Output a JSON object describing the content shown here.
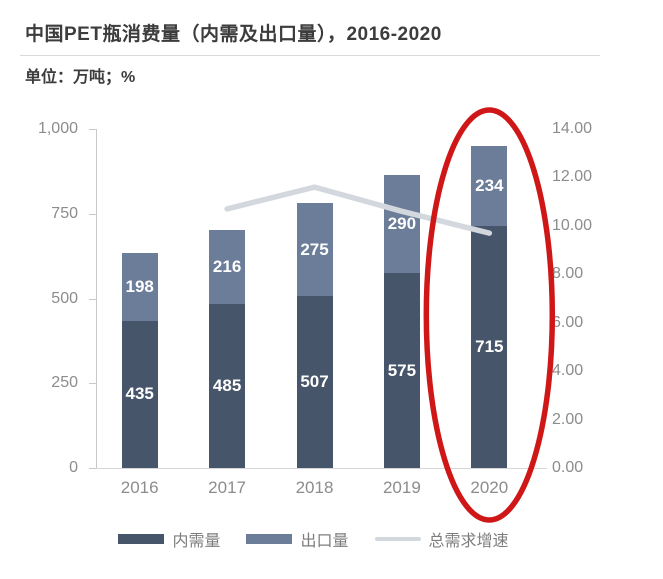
{
  "title": "中国PET瓶消费量（内需及出口量），2016-2020",
  "subtitle": "单位：万吨；%",
  "chart_data": {
    "type": "bar",
    "subtype": "stacked-bars-with-growth-line",
    "categories": [
      "2016",
      "2017",
      "2018",
      "2019",
      "2020"
    ],
    "series": [
      {
        "name": "内需量",
        "kind": "bar",
        "axis": "left",
        "color": "#46556a",
        "values": [
          435,
          485,
          507,
          575,
          715
        ]
      },
      {
        "name": "出口量",
        "kind": "bar",
        "axis": "left",
        "color": "#6b7d99",
        "values": [
          198,
          216,
          275,
          290,
          234
        ]
      },
      {
        "name": "总需求增速",
        "kind": "line",
        "axis": "right",
        "color": "#d3d7de",
        "values": [
          null,
          10.7,
          11.6,
          10.6,
          9.7
        ]
      }
    ],
    "bar_value_labels": {
      "内需量": [
        "435",
        "485",
        "507",
        "575",
        "715"
      ],
      "出口量": [
        "198",
        "216",
        "275",
        "290",
        "234"
      ]
    },
    "left_axis": {
      "min": 0,
      "max": 1000,
      "ticks": [
        "0",
        "250",
        "500",
        "750",
        "1,000"
      ]
    },
    "right_axis": {
      "min": 0,
      "max": 14,
      "ticks": [
        "0.00",
        "2.00",
        "4.00",
        "6.00",
        "8.00",
        "10.00",
        "12.00",
        "14.00"
      ]
    },
    "grid": "off",
    "legend_position": "bottom"
  },
  "annotation": {
    "shape": "ellipse",
    "color": "#cf1717",
    "target_category": "2020",
    "meaning": "red circle highlighting the 2020 bar"
  },
  "colors": {
    "background": "#ffffff",
    "title_text": "#3c3c3c",
    "axis_text": "#8c8c8c",
    "legend_text": "#7d7d7d",
    "axis_line": "#c9c9c9",
    "bar_label_text": "#ffffff"
  }
}
